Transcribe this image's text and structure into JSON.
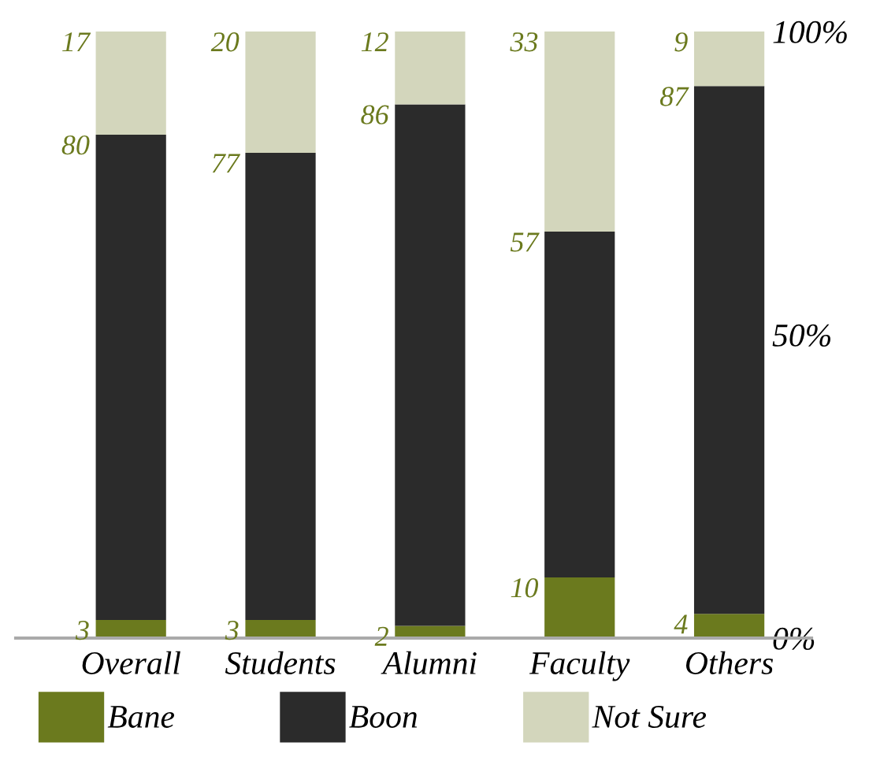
{
  "chart_data": {
    "type": "bar",
    "stacked": true,
    "categories": [
      "Overall",
      "Students",
      "Alumni",
      "Faculty",
      "Others"
    ],
    "series": [
      {
        "name": "Bane",
        "color": "#6b7a1e",
        "values": [
          3,
          3,
          2,
          10,
          4
        ]
      },
      {
        "name": "Boon",
        "color": "#2b2b2b",
        "values": [
          80,
          77,
          86,
          57,
          87
        ]
      },
      {
        "name": "Not Sure",
        "color": "#d3d6bc",
        "values": [
          17,
          20,
          12,
          33,
          9
        ]
      }
    ],
    "ylim": [
      0,
      100
    ],
    "yticks": [
      {
        "value": 0,
        "label": "0%"
      },
      {
        "value": 50,
        "label": "50%"
      },
      {
        "value": 100,
        "label": "100%"
      }
    ],
    "data_labels": true,
    "legend": "bottom",
    "grid": false
  }
}
